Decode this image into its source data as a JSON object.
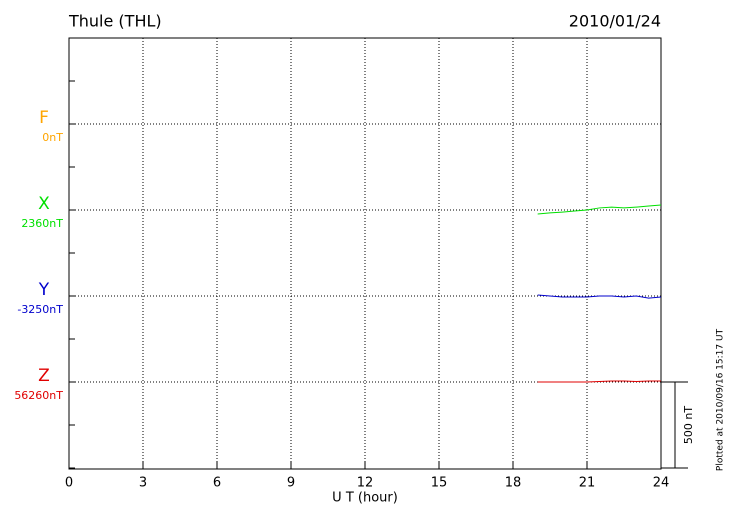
{
  "chart_data": {
    "type": "line",
    "title": "Thule (THL)",
    "date": "2010/01/24",
    "footnote": "Plotted at 2010/09/16 15:17 UT",
    "xlabel": "U T (hour)",
    "xlim": [
      0,
      24
    ],
    "xticks": [
      0,
      3,
      6,
      9,
      12,
      15,
      18,
      21,
      24
    ],
    "grid": true,
    "scale_bar": {
      "value": 500,
      "label": "500 nT"
    },
    "x": [
      19,
      19.5,
      20,
      20.5,
      21,
      21.5,
      22,
      22.5,
      23,
      23.5,
      24
    ],
    "series": [
      {
        "name": "F",
        "color": "#ffa500",
        "baseline": {
          "value": 0,
          "label": "0nT"
        },
        "values": [
          null,
          null,
          null,
          null,
          null,
          null,
          null,
          null,
          null,
          null,
          null
        ]
      },
      {
        "name": "X",
        "color": "#00e000",
        "baseline": {
          "value": 2360,
          "label": "2360nT"
        },
        "values": [
          2337,
          2343,
          2348,
          2354,
          2360,
          2372,
          2377,
          2372,
          2377,
          2383,
          2389
        ]
      },
      {
        "name": "Y",
        "color": "#0000cc",
        "baseline": {
          "value": -3250,
          "label": "-3250nT"
        },
        "values": [
          -3244,
          -3250,
          -3256,
          -3256,
          -3256,
          -3250,
          -3250,
          -3256,
          -3250,
          -3262,
          -3256
        ]
      },
      {
        "name": "Z",
        "color": "#e00000",
        "baseline": {
          "value": 56260,
          "label": "56260nT"
        },
        "values": [
          56260,
          56260,
          56260,
          56260,
          56260,
          56263,
          56266,
          56266,
          56263,
          56266,
          56266
        ]
      }
    ]
  }
}
